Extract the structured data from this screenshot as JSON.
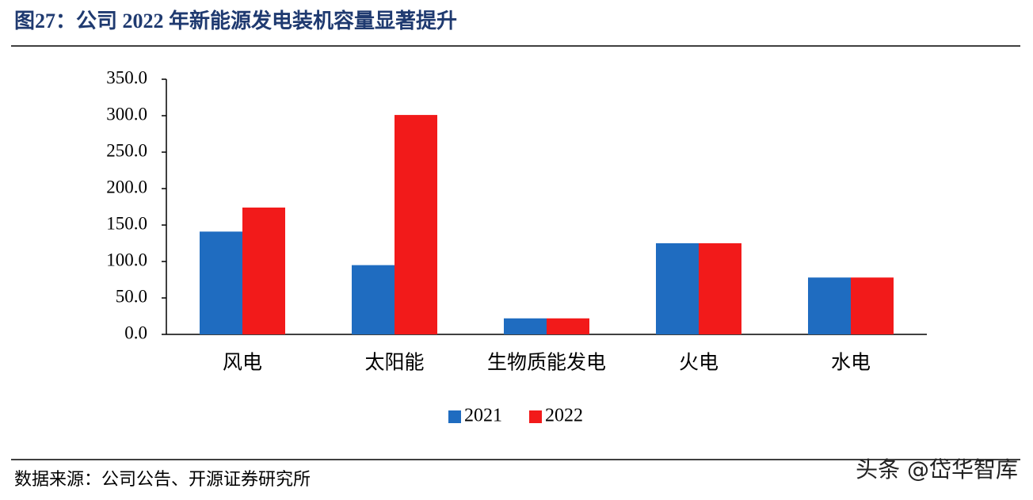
{
  "chart_data": {
    "type": "bar",
    "title": "图27：公司 2022 年新能源发电装机容量显著提升",
    "categories": [
      "风电",
      "太阳能",
      "生物质能发电",
      "火电",
      "水电"
    ],
    "series": [
      {
        "name": "2021",
        "color": "#1f6cc0",
        "values": [
          141,
          95,
          22,
          125,
          78
        ]
      },
      {
        "name": "2022",
        "color": "#f21a1a",
        "values": [
          174,
          301,
          22,
          125,
          78
        ]
      }
    ],
    "ylim": [
      0,
      350
    ],
    "yticks": [
      {
        "value": 0,
        "label": "0.0"
      },
      {
        "value": 50,
        "label": "50.0"
      },
      {
        "value": 100,
        "label": "100.0"
      },
      {
        "value": 150,
        "label": "150.0"
      },
      {
        "value": 200,
        "label": "200.0"
      },
      {
        "value": 250,
        "label": "250.0"
      },
      {
        "value": 300,
        "label": "300.0"
      },
      {
        "value": 350,
        "label": "350.0"
      }
    ],
    "legend": "bottom",
    "source": "数据来源：公司公告、开源证券研究所",
    "watermark": "头条 @岱华智库"
  }
}
